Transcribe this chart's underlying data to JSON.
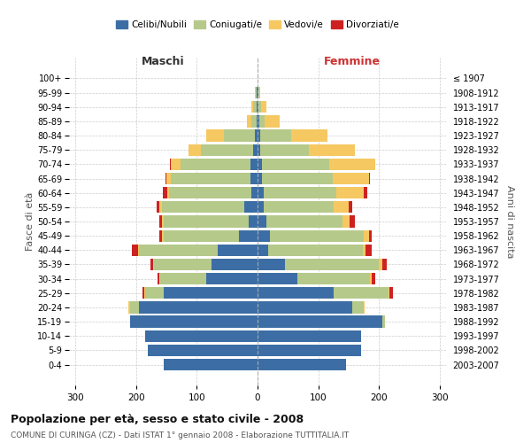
{
  "age_groups": [
    "0-4",
    "5-9",
    "10-14",
    "15-19",
    "20-24",
    "25-29",
    "30-34",
    "35-39",
    "40-44",
    "45-49",
    "50-54",
    "55-59",
    "60-64",
    "65-69",
    "70-74",
    "75-79",
    "80-84",
    "85-89",
    "90-94",
    "95-99",
    "100+"
  ],
  "birth_years": [
    "2003-2007",
    "1998-2002",
    "1993-1997",
    "1988-1992",
    "1983-1987",
    "1978-1982",
    "1973-1977",
    "1968-1972",
    "1963-1967",
    "1958-1962",
    "1953-1957",
    "1948-1952",
    "1943-1947",
    "1938-1942",
    "1933-1937",
    "1928-1932",
    "1923-1927",
    "1918-1922",
    "1913-1917",
    "1908-1912",
    "≤ 1907"
  ],
  "maschi_celibi": [
    155,
    180,
    185,
    210,
    195,
    155,
    85,
    75,
    65,
    30,
    15,
    22,
    10,
    12,
    12,
    8,
    5,
    2,
    2,
    1,
    0
  ],
  "maschi_coniugati": [
    0,
    0,
    0,
    0,
    15,
    30,
    75,
    95,
    130,
    125,
    140,
    135,
    135,
    130,
    115,
    85,
    50,
    8,
    5,
    2,
    0
  ],
  "maschi_vedovi": [
    0,
    0,
    0,
    0,
    2,
    2,
    2,
    2,
    2,
    2,
    2,
    4,
    3,
    8,
    15,
    20,
    30,
    8,
    3,
    1,
    0
  ],
  "maschi_divorziati": [
    0,
    0,
    0,
    0,
    0,
    2,
    3,
    4,
    10,
    5,
    4,
    5,
    8,
    2,
    2,
    0,
    0,
    0,
    0,
    0,
    0
  ],
  "femmine_celibi": [
    145,
    170,
    170,
    205,
    155,
    125,
    65,
    45,
    18,
    20,
    15,
    10,
    10,
    8,
    8,
    5,
    5,
    3,
    2,
    1,
    0
  ],
  "femmine_coniugate": [
    0,
    0,
    0,
    5,
    20,
    90,
    120,
    155,
    155,
    155,
    125,
    115,
    120,
    115,
    110,
    80,
    50,
    8,
    4,
    2,
    0
  ],
  "femmine_vedove": [
    0,
    0,
    0,
    0,
    1,
    2,
    3,
    5,
    5,
    8,
    12,
    25,
    45,
    60,
    75,
    75,
    60,
    25,
    8,
    2,
    0
  ],
  "femmine_divorziate": [
    0,
    0,
    0,
    0,
    0,
    5,
    5,
    8,
    10,
    5,
    8,
    5,
    5,
    2,
    0,
    0,
    0,
    0,
    0,
    0,
    0
  ],
  "colors": {
    "celibi": "#3c6ea5",
    "coniugati": "#b5c98a",
    "vedovi": "#f5c862",
    "divorziati": "#cc2222"
  },
  "xlim": 310,
  "title": "Popolazione per età, sesso e stato civile - 2008",
  "subtitle": "COMUNE DI CURINGA (CZ) - Dati ISTAT 1° gennaio 2008 - Elaborazione TUTTITALIA.IT",
  "ylabel_left": "Fasce di età",
  "ylabel_right": "Anni di nascita",
  "xlabel_left": "Maschi",
  "xlabel_right": "Femmine",
  "legend_labels": [
    "Celibi/Nubili",
    "Coniugati/e",
    "Vedovi/e",
    "Divorziati/e"
  ],
  "background_color": "#ffffff",
  "grid_color": "#cccccc"
}
